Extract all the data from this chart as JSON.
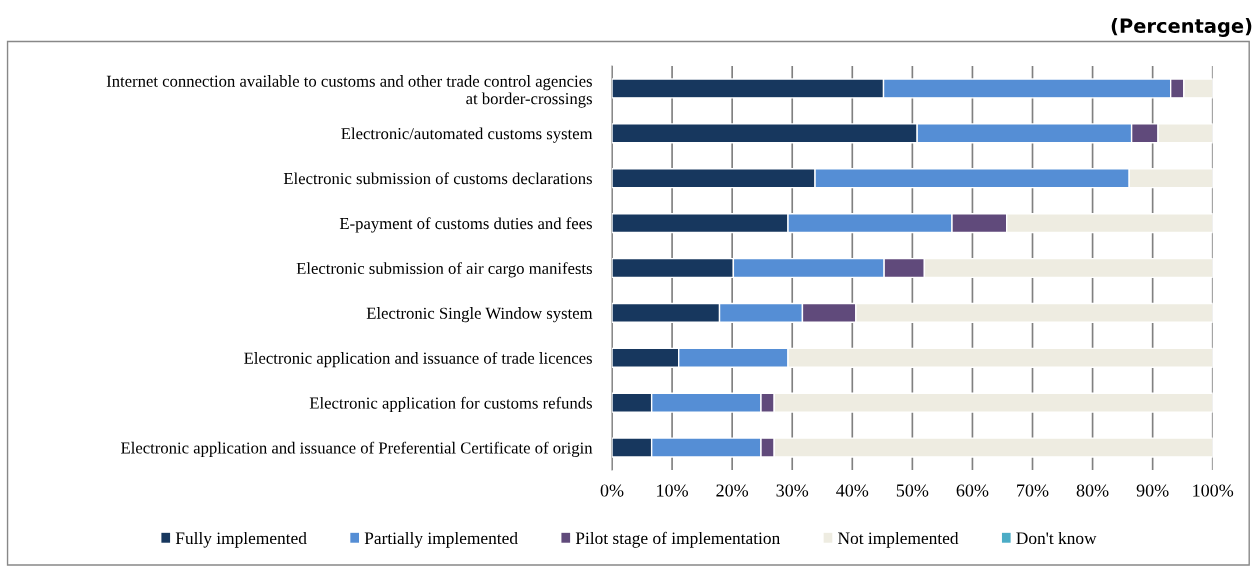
{
  "chart_data": {
    "type": "bar",
    "orientation": "horizontal",
    "stacked": true,
    "title": "(Percentage)",
    "categories": [
      "Internet connection available to customs and other trade control agencies\nat border-crossings",
      "Electronic/automated customs system",
      "Electronic submission of customs declarations",
      "E-payment of customs duties and fees",
      "Electronic submission of air cargo manifests",
      "Electronic Single Window system",
      "Electronic application and issuance of trade licences",
      "Electronic application for customs refunds",
      "Electronic application and issuance of Preferential Certificate of origin"
    ],
    "series": [
      {
        "name": "Fully implemented",
        "color": "#17375e",
        "values": [
          45.2,
          50.8,
          33.8,
          29.3,
          20.2,
          17.9,
          11.1,
          6.6,
          6.6
        ]
      },
      {
        "name": "Partially implemented",
        "color": "#558ed5",
        "values": [
          47.8,
          35.7,
          52.3,
          27.3,
          25.1,
          13.8,
          18.2,
          18.2,
          18.2
        ]
      },
      {
        "name": "Pilot stage of implementation",
        "color": "#604a7b",
        "values": [
          2.2,
          4.4,
          0,
          9.1,
          6.7,
          8.9,
          0,
          2.2,
          2.2
        ]
      },
      {
        "name": "Not implemented",
        "color": "#eeece1",
        "values": [
          4.8,
          9.1,
          13.9,
          34.3,
          48.0,
          59.4,
          70.7,
          73.0,
          73.0
        ]
      },
      {
        "name": "Don't know",
        "color": "#4bacc6",
        "values": [
          0,
          0,
          0,
          0,
          0,
          0,
          0,
          0,
          0
        ]
      }
    ],
    "xlim": [
      0,
      100
    ],
    "xticks": [
      {
        "value": 0,
        "label": "0%"
      },
      {
        "value": 10,
        "label": "10%"
      },
      {
        "value": 20,
        "label": "20%"
      },
      {
        "value": 30,
        "label": "30%"
      },
      {
        "value": 40,
        "label": "40%"
      },
      {
        "value": 50,
        "label": "50%"
      },
      {
        "value": 60,
        "label": "60%"
      },
      {
        "value": 70,
        "label": "70%"
      },
      {
        "value": 80,
        "label": "80%"
      },
      {
        "value": 90,
        "label": "90%"
      },
      {
        "value": 100,
        "label": "100%"
      }
    ],
    "grid": "x",
    "legend": "bottom"
  }
}
